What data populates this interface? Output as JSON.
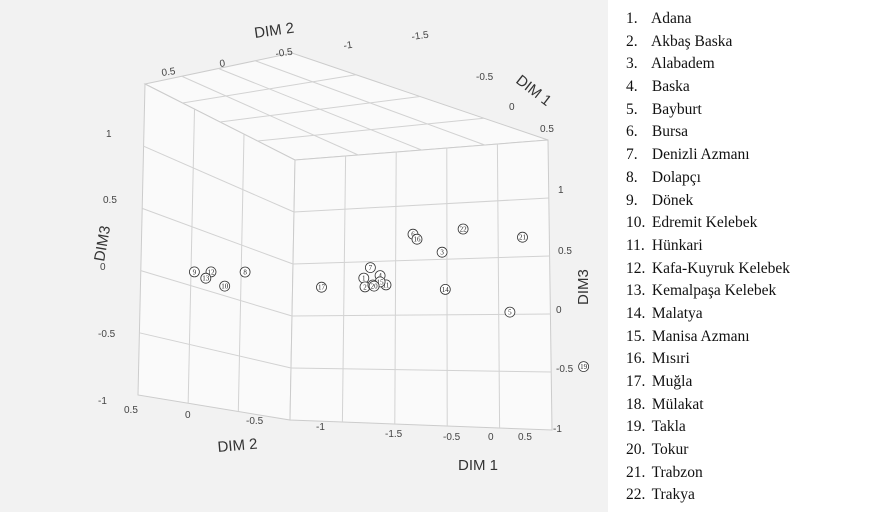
{
  "chart_data": {
    "type": "scatter",
    "projection": "3d",
    "grid": true,
    "axes": {
      "dim1_label": "DIM 1",
      "dim2_label": "DIM 2",
      "dim3_label": "DIM3",
      "dim1_ticks": [
        "-0.5",
        "0",
        "0.5"
      ],
      "dim2_ticks": [
        "0.5",
        "0",
        "-0.5",
        "-1",
        "-1.5"
      ],
      "dim3_ticks_left": [
        "1",
        "0.5",
        "0",
        "-0.5",
        "-1"
      ],
      "dim3_ticks_right": [
        "1",
        "0.5",
        "0",
        "-0.5",
        "-1"
      ]
    },
    "points": [
      {
        "id": "1",
        "dim1": -0.4,
        "dim2": -0.78,
        "dim3": -0.08
      },
      {
        "id": "2",
        "dim1": -0.42,
        "dim2": -0.8,
        "dim3": -0.22
      },
      {
        "id": "3",
        "dim1": -0.05,
        "dim2": -1.2,
        "dim3": 0.48
      },
      {
        "id": "4",
        "dim1": -0.35,
        "dim2": -0.88,
        "dim3": -0.02
      },
      {
        "id": "5",
        "dim1": 0.15,
        "dim2": -1.62,
        "dim3": -0.28
      },
      {
        "id": "6",
        "dim1": -0.1,
        "dim2": -1.0,
        "dim3": 0.72
      },
      {
        "id": "7",
        "dim1": -0.38,
        "dim2": -0.82,
        "dim3": 0.08
      },
      {
        "id": "8",
        "dim1": -0.45,
        "dim2": 0.12,
        "dim3": 0.04
      },
      {
        "id": "9",
        "dim1": -0.48,
        "dim2": 0.5,
        "dim3": 0.05
      },
      {
        "id": "10",
        "dim1": -0.45,
        "dim2": 0.28,
        "dim3": -0.15
      },
      {
        "id": "11",
        "dim1": -0.34,
        "dim2": -0.92,
        "dim3": -0.15
      },
      {
        "id": "12",
        "dim1": -0.48,
        "dim2": 0.37,
        "dim3": 0.04
      },
      {
        "id": "13",
        "dim1": -0.5,
        "dim2": 0.4,
        "dim3": -0.06
      },
      {
        "id": "14",
        "dim1": -0.15,
        "dim2": -1.28,
        "dim3": -0.12
      },
      {
        "id": "15",
        "dim1": -0.35,
        "dim2": -0.88,
        "dim3": -0.11
      },
      {
        "id": "16",
        "dim1": -0.08,
        "dim2": -1.02,
        "dim3": 0.66
      },
      {
        "id": "17",
        "dim1": -0.42,
        "dim2": -0.46,
        "dim3": -0.2
      },
      {
        "id": "18",
        "dim1": -0.38,
        "dim2": -0.84,
        "dim3": -0.17
      },
      {
        "id": "19",
        "dim1": 0.6,
        "dim2": -1.95,
        "dim3": -0.8
      },
      {
        "id": "20",
        "dim1": -0.4,
        "dim2": -0.86,
        "dim3": -0.2
      },
      {
        "id": "21",
        "dim1": 0.55,
        "dim2": -1.5,
        "dim3": 1.05
      },
      {
        "id": "22",
        "dim1": 0.25,
        "dim2": -1.2,
        "dim3": 1.0
      }
    ]
  },
  "legend": [
    {
      "num": "1.",
      "name": "Adana"
    },
    {
      "num": "2.",
      "name": "Akbaş Baska"
    },
    {
      "num": "3.",
      "name": "Alabadem"
    },
    {
      "num": "4.",
      "name": "Baska"
    },
    {
      "num": "5.",
      "name": "Bayburt"
    },
    {
      "num": "6.",
      "name": "Bursa"
    },
    {
      "num": "7.",
      "name": "Denizli Azmanı"
    },
    {
      "num": "8.",
      "name": "Dolapçı"
    },
    {
      "num": "9.",
      "name": "Dönek"
    },
    {
      "num": "10.",
      "name": "Edremit Kelebek"
    },
    {
      "num": "11.",
      "name": "Hünkari"
    },
    {
      "num": "12.",
      "name": "Kafa-Kuyruk Kelebek"
    },
    {
      "num": "13.",
      "name": "Kemalpaşa Kelebek"
    },
    {
      "num": "14.",
      "name": "Malatya"
    },
    {
      "num": "15.",
      "name": "Manisa Azmanı"
    },
    {
      "num": "16.",
      "name": "Mısıri"
    },
    {
      "num": "17.",
      "name": "Muğla"
    },
    {
      "num": "18.",
      "name": "Mülakat"
    },
    {
      "num": "19.",
      "name": "Takla"
    },
    {
      "num": "20.",
      "name": "Tokur"
    },
    {
      "num": "21.",
      "name": "Trabzon"
    },
    {
      "num": "22.",
      "name": "Trakya"
    }
  ]
}
